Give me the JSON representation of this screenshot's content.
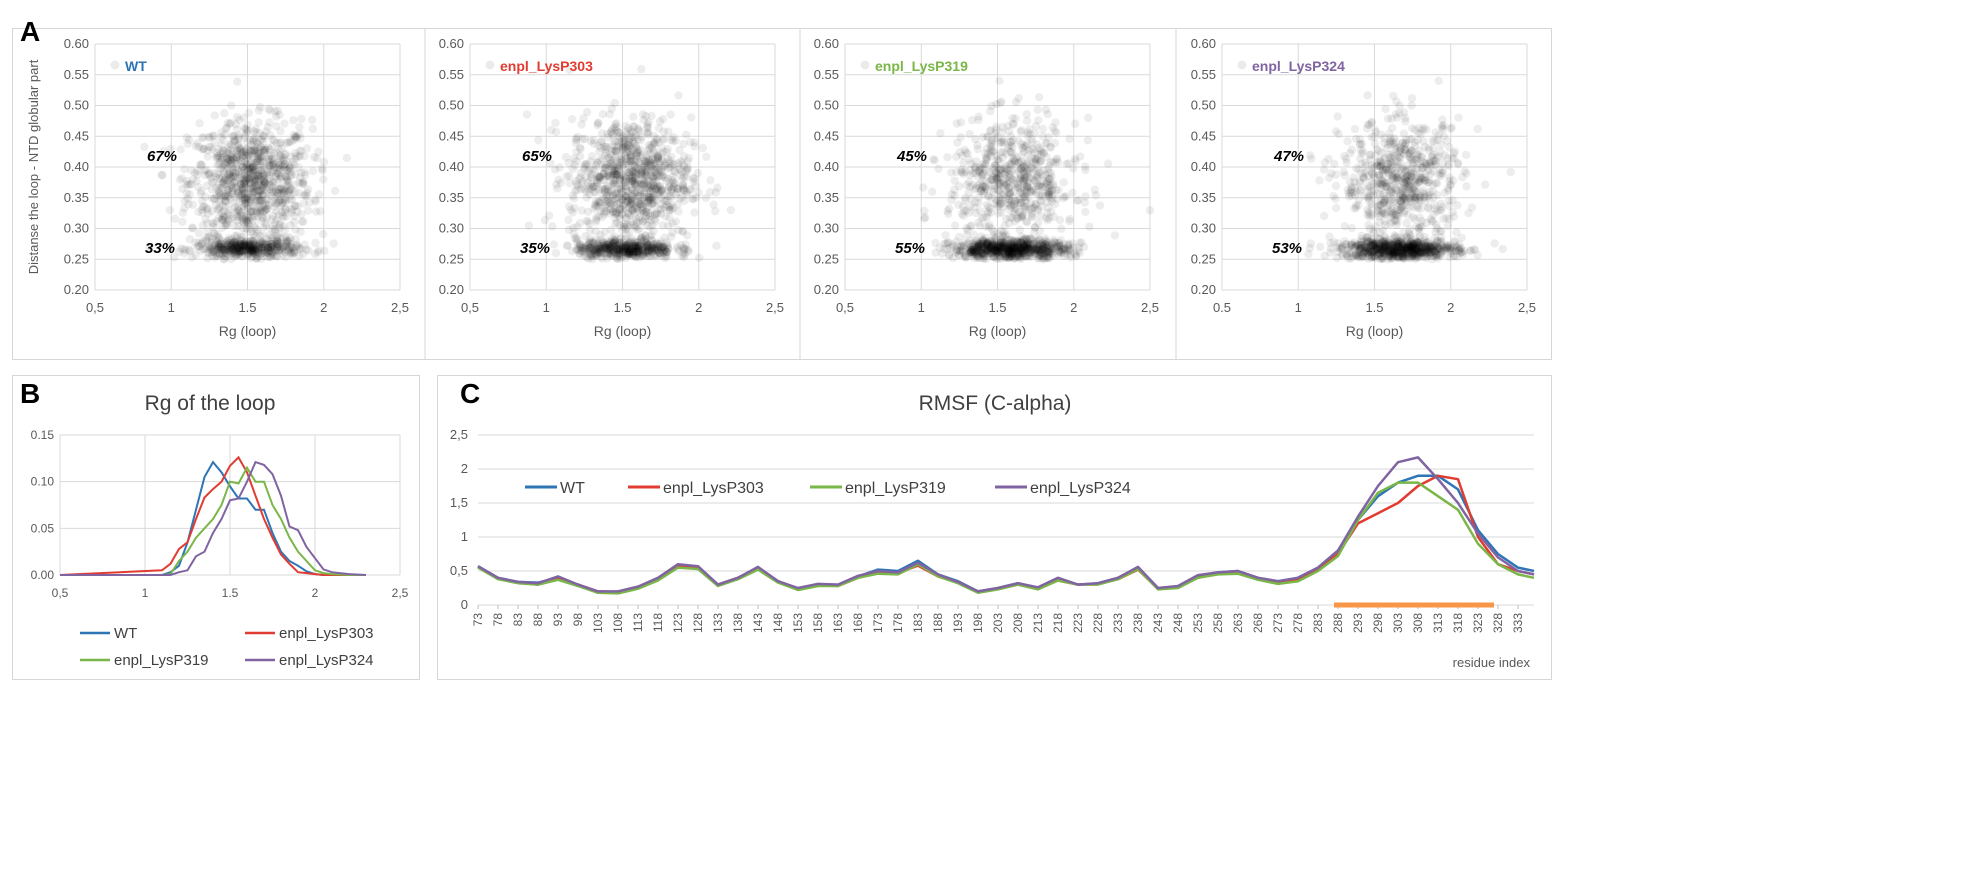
{
  "panel_letters": {
    "a": "A",
    "b": "B",
    "c": "C"
  },
  "chart_data": [
    {
      "id": "scatter-wt",
      "type": "scatter",
      "title": "",
      "legend_label": "WT",
      "legend_color": "#2e75b6",
      "xlabel": "Rg (loop)",
      "ylabel": "Distanse the loop - NTD globular part",
      "xlim": [
        0.5,
        2.5
      ],
      "ylim": [
        0.2,
        0.6
      ],
      "x_ticks": [
        "0,5",
        "1",
        "1.5",
        "2",
        "2,5"
      ],
      "y_ticks": [
        "0.20",
        "0.25",
        "0.30",
        "0.35",
        "0.40",
        "0.45",
        "0.50",
        "0.55",
        "0.60"
      ],
      "clusters": [
        {
          "cx": 1.52,
          "cy": 0.375,
          "sx": 0.2,
          "sy": 0.05,
          "fraction": 0.67
        },
        {
          "cx": 1.5,
          "cy": 0.267,
          "sx": 0.17,
          "sy": 0.008,
          "fraction": 0.33
        }
      ],
      "annotations": {
        "upper": "67%",
        "lower": "33%"
      }
    },
    {
      "id": "scatter-303",
      "type": "scatter",
      "title": "",
      "legend_label": "enpl_LysP303",
      "legend_color": "#e03c31",
      "xlabel": "Rg (loop)",
      "ylabel": "",
      "xlim": [
        0.5,
        2.5
      ],
      "ylim": [
        0.2,
        0.6
      ],
      "x_ticks": [
        "0,5",
        "1",
        "1.5",
        "2",
        "2,5"
      ],
      "y_ticks": [
        "0.20",
        "0.25",
        "0.30",
        "0.35",
        "0.40",
        "0.45",
        "0.50",
        "0.55",
        "0.60"
      ],
      "clusters": [
        {
          "cx": 1.55,
          "cy": 0.38,
          "sx": 0.2,
          "sy": 0.05,
          "fraction": 0.65
        },
        {
          "cx": 1.52,
          "cy": 0.267,
          "sx": 0.16,
          "sy": 0.008,
          "fraction": 0.35
        }
      ],
      "annotations": {
        "upper": "65%",
        "lower": "35%"
      }
    },
    {
      "id": "scatter-319",
      "type": "scatter",
      "title": "",
      "legend_label": "enpl_LysP319",
      "legend_color": "#7ab648",
      "xlabel": "Rg (loop)",
      "ylabel": "",
      "xlim": [
        0.5,
        2.5
      ],
      "ylim": [
        0.2,
        0.6
      ],
      "x_ticks": [
        "0,5",
        "1",
        "1.5",
        "2",
        "2,5"
      ],
      "y_ticks": [
        "0.20",
        "0.25",
        "0.30",
        "0.35",
        "0.40",
        "0.45",
        "0.50",
        "0.55",
        "0.60"
      ],
      "clusters": [
        {
          "cx": 1.6,
          "cy": 0.375,
          "sx": 0.21,
          "sy": 0.05,
          "fraction": 0.45
        },
        {
          "cx": 1.58,
          "cy": 0.266,
          "sx": 0.19,
          "sy": 0.008,
          "fraction": 0.55
        }
      ],
      "annotations": {
        "upper": "45%",
        "lower": "55%"
      }
    },
    {
      "id": "scatter-324",
      "type": "scatter",
      "title": "",
      "legend_label": "enpl_LysP324",
      "legend_color": "#8064a2",
      "xlabel": "Rg (loop)",
      "ylabel": "",
      "xlim": [
        0.5,
        2.5
      ],
      "ylim": [
        0.2,
        0.6
      ],
      "x_ticks": [
        "0.5",
        "1",
        "1.5",
        "2",
        "2,5"
      ],
      "y_ticks": [
        "0.20",
        "0.25",
        "0.30",
        "0.35",
        "0.40",
        "0.45",
        "0.50",
        "0.55",
        "0.60"
      ],
      "clusters": [
        {
          "cx": 1.68,
          "cy": 0.375,
          "sx": 0.2,
          "sy": 0.05,
          "fraction": 0.47
        },
        {
          "cx": 1.66,
          "cy": 0.266,
          "sx": 0.19,
          "sy": 0.008,
          "fraction": 0.53
        }
      ],
      "annotations": {
        "upper": "47%",
        "lower": "53%"
      }
    },
    {
      "id": "rg-distribution",
      "type": "line",
      "title": "Rg of the loop",
      "xlabel": "",
      "ylabel": "",
      "xlim": [
        0.5,
        2.5
      ],
      "ylim": [
        0,
        0.15
      ],
      "x_ticks": [
        "0,5",
        "1",
        "1.5",
        "2",
        "2,5"
      ],
      "y_ticks": [
        "0.00",
        "0.05",
        "0.10",
        "0.15"
      ],
      "x": [
        0.5,
        1.1,
        1.15,
        1.2,
        1.25,
        1.3,
        1.35,
        1.4,
        1.45,
        1.5,
        1.55,
        1.6,
        1.65,
        1.7,
        1.75,
        1.8,
        1.85,
        1.9,
        1.95,
        2.0,
        2.05,
        2.1,
        2.2,
        2.3
      ],
      "series": [
        {
          "name": "WT",
          "color": "#2e75b6",
          "values": [
            0,
            0,
            0.003,
            0.01,
            0.035,
            0.07,
            0.105,
            0.121,
            0.11,
            0.095,
            0.082,
            0.082,
            0.07,
            0.07,
            0.045,
            0.025,
            0.015,
            0.01,
            0.004,
            0.001,
            0,
            0,
            0,
            0
          ]
        },
        {
          "name": "enpl_LysP303",
          "color": "#e03c31",
          "values": [
            0,
            0.005,
            0.012,
            0.028,
            0.035,
            0.06,
            0.083,
            0.092,
            0.1,
            0.117,
            0.126,
            0.11,
            0.085,
            0.06,
            0.04,
            0.022,
            0.012,
            0.003,
            0.002,
            0.001,
            0,
            0,
            0,
            0
          ]
        },
        {
          "name": "enpl_LysP319",
          "color": "#7ab648",
          "values": [
            0,
            0,
            0.001,
            0.015,
            0.025,
            0.04,
            0.05,
            0.06,
            0.075,
            0.1,
            0.098,
            0.115,
            0.1,
            0.1,
            0.075,
            0.06,
            0.04,
            0.025,
            0.015,
            0.005,
            0.002,
            0.001,
            0,
            0
          ]
        },
        {
          "name": "enpl_LysP324",
          "color": "#8064a2",
          "values": [
            0,
            0,
            0,
            0.003,
            0.005,
            0.02,
            0.025,
            0.045,
            0.06,
            0.08,
            0.082,
            0.1,
            0.121,
            0.118,
            0.108,
            0.085,
            0.052,
            0.048,
            0.03,
            0.018,
            0.006,
            0.003,
            0.001,
            0
          ]
        }
      ]
    },
    {
      "id": "rmsf",
      "type": "line",
      "title": "RMSF (C-alpha)",
      "xlabel": "residue index",
      "ylabel": "",
      "xlim": [
        73,
        337
      ],
      "ylim": [
        0,
        2.5
      ],
      "x_ticks": [
        "73",
        "78",
        "83",
        "88",
        "93",
        "98",
        "103",
        "108",
        "113",
        "118",
        "123",
        "128",
        "133",
        "138",
        "143",
        "148",
        "153",
        "158",
        "163",
        "168",
        "173",
        "178",
        "183",
        "188",
        "193",
        "198",
        "203",
        "208",
        "213",
        "218",
        "223",
        "228",
        "233",
        "238",
        "243",
        "248",
        "253",
        "258",
        "263",
        "268",
        "273",
        "278",
        "283",
        "288",
        "293",
        "298",
        "303",
        "308",
        "313",
        "318",
        "323",
        "328",
        "333"
      ],
      "y_ticks": [
        "0",
        "0,5",
        "1",
        "1,5",
        "2",
        "2,5"
      ],
      "highlight_range": [
        287,
        327
      ],
      "highlight_color": "#f79646",
      "x": [
        73,
        78,
        83,
        88,
        93,
        98,
        103,
        108,
        113,
        118,
        123,
        128,
        133,
        138,
        143,
        148,
        153,
        158,
        163,
        168,
        173,
        178,
        183,
        188,
        193,
        198,
        203,
        208,
        213,
        218,
        223,
        228,
        233,
        238,
        243,
        248,
        253,
        258,
        263,
        268,
        273,
        278,
        283,
        288,
        293,
        298,
        303,
        308,
        313,
        318,
        323,
        328,
        333,
        337
      ],
      "series": [
        {
          "name": "WT",
          "color": "#2e75b6",
          "values": [
            0.57,
            0.4,
            0.34,
            0.33,
            0.4,
            0.3,
            0.18,
            0.18,
            0.25,
            0.38,
            0.58,
            0.55,
            0.3,
            0.4,
            0.55,
            0.35,
            0.24,
            0.3,
            0.3,
            0.42,
            0.52,
            0.5,
            0.65,
            0.45,
            0.35,
            0.2,
            0.25,
            0.32,
            0.25,
            0.38,
            0.3,
            0.32,
            0.4,
            0.55,
            0.25,
            0.27,
            0.42,
            0.48,
            0.5,
            0.4,
            0.35,
            0.4,
            0.55,
            0.8,
            1.25,
            1.6,
            1.8,
            1.9,
            1.9,
            1.7,
            1.1,
            0.75,
            0.55,
            0.5
          ]
        },
        {
          "name": "enpl_LysP303",
          "color": "#e03c31",
          "values": [
            0.56,
            0.39,
            0.33,
            0.3,
            0.38,
            0.3,
            0.2,
            0.19,
            0.26,
            0.38,
            0.56,
            0.55,
            0.3,
            0.4,
            0.54,
            0.34,
            0.23,
            0.29,
            0.28,
            0.4,
            0.48,
            0.47,
            0.58,
            0.42,
            0.33,
            0.2,
            0.24,
            0.3,
            0.24,
            0.36,
            0.3,
            0.31,
            0.38,
            0.52,
            0.24,
            0.26,
            0.4,
            0.46,
            0.46,
            0.38,
            0.34,
            0.38,
            0.52,
            0.75,
            1.2,
            1.35,
            1.5,
            1.75,
            1.9,
            1.85,
            1.0,
            0.6,
            0.5,
            0.45
          ]
        },
        {
          "name": "enpl_LysP319",
          "color": "#7ab648",
          "values": [
            0.55,
            0.38,
            0.32,
            0.3,
            0.37,
            0.28,
            0.18,
            0.17,
            0.24,
            0.36,
            0.55,
            0.53,
            0.28,
            0.38,
            0.52,
            0.33,
            0.22,
            0.28,
            0.28,
            0.4,
            0.46,
            0.45,
            0.6,
            0.42,
            0.32,
            0.18,
            0.23,
            0.3,
            0.23,
            0.36,
            0.3,
            0.3,
            0.38,
            0.53,
            0.23,
            0.25,
            0.4,
            0.45,
            0.46,
            0.37,
            0.31,
            0.35,
            0.5,
            0.72,
            1.25,
            1.65,
            1.8,
            1.8,
            1.6,
            1.4,
            0.9,
            0.6,
            0.45,
            0.4
          ]
        },
        {
          "name": "enpl_LysP324",
          "color": "#8064a2",
          "values": [
            0.57,
            0.4,
            0.34,
            0.32,
            0.42,
            0.3,
            0.2,
            0.2,
            0.27,
            0.4,
            0.6,
            0.57,
            0.3,
            0.4,
            0.56,
            0.35,
            0.25,
            0.31,
            0.3,
            0.43,
            0.5,
            0.48,
            0.62,
            0.45,
            0.34,
            0.2,
            0.25,
            0.32,
            0.26,
            0.4,
            0.3,
            0.32,
            0.4,
            0.56,
            0.25,
            0.28,
            0.44,
            0.48,
            0.5,
            0.4,
            0.35,
            0.4,
            0.55,
            0.8,
            1.3,
            1.75,
            2.1,
            2.17,
            1.85,
            1.5,
            1.05,
            0.7,
            0.5,
            0.45
          ]
        }
      ]
    }
  ]
}
